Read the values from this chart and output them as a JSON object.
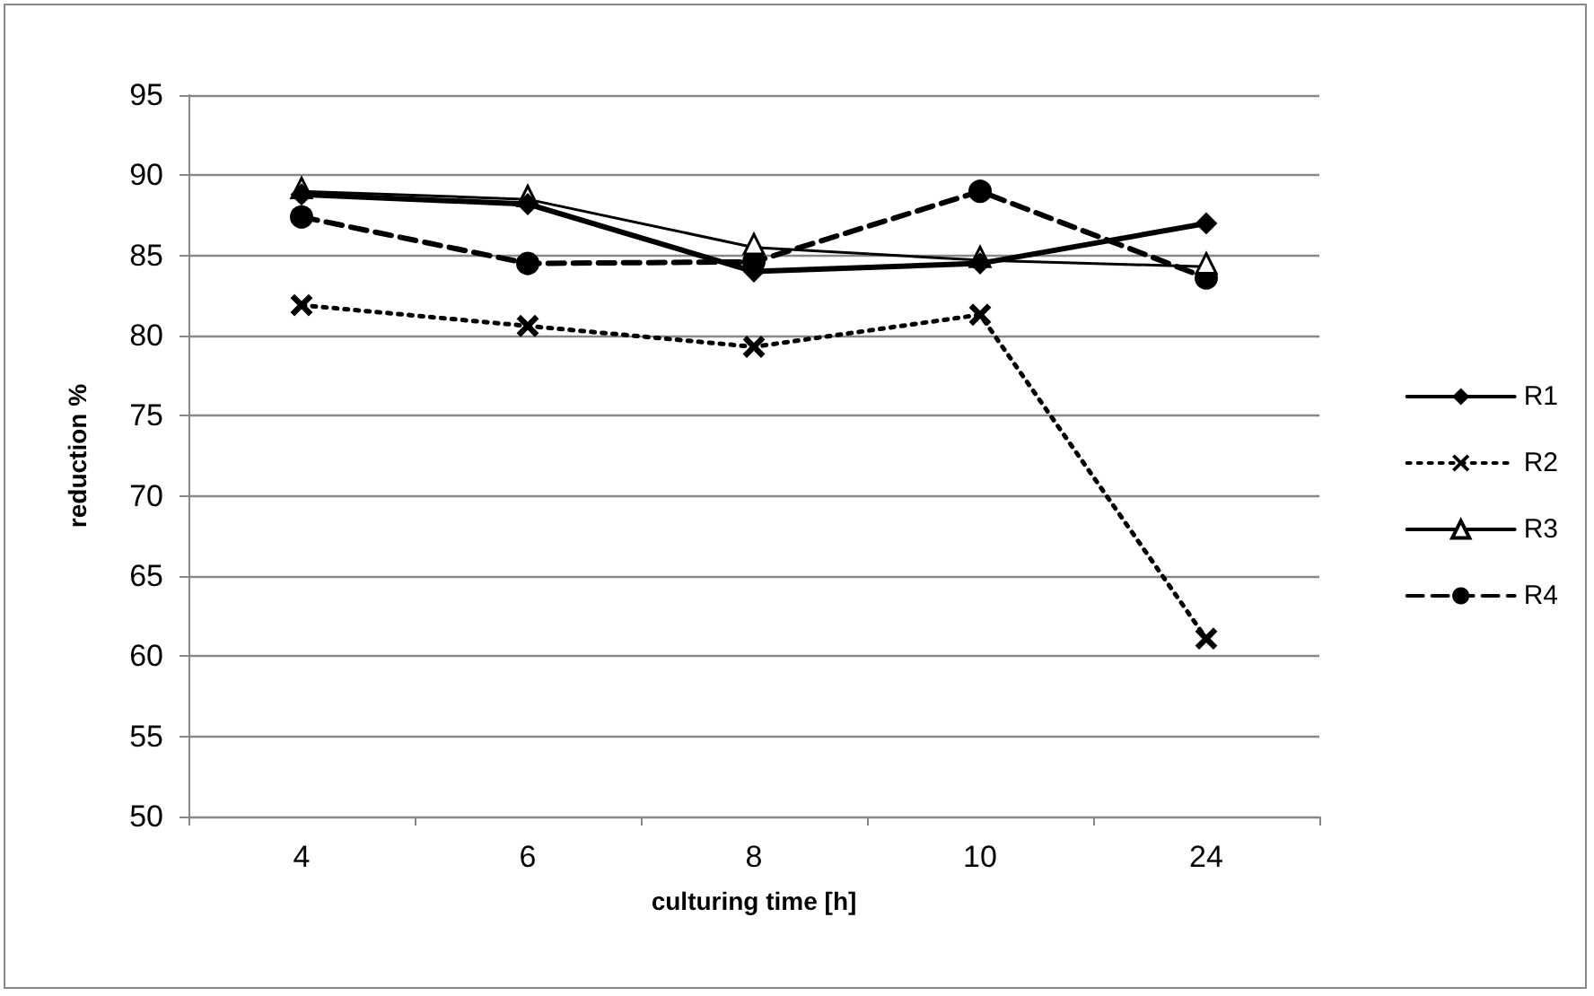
{
  "chart_data": {
    "type": "line",
    "xlabel": "culturing time [h]",
    "ylabel": "reduction %",
    "categories": [
      "4",
      "6",
      "8",
      "10",
      "24"
    ],
    "series": [
      {
        "name": "R1",
        "color": "#000000",
        "marker": "diamond",
        "line_style": "solid",
        "values": [
          88.8,
          88.2,
          84.0,
          84.5,
          87.0
        ]
      },
      {
        "name": "R2",
        "color": "#000000",
        "marker": "cross",
        "line_style": "dotted",
        "values": [
          81.9,
          80.6,
          79.3,
          81.3,
          61.1
        ]
      },
      {
        "name": "R3",
        "color": "#000000",
        "marker": "triangle",
        "line_style": "solid",
        "values": [
          89.0,
          88.5,
          85.5,
          84.7,
          84.3
        ]
      },
      {
        "name": "R4",
        "color": "#000000",
        "marker": "circle",
        "line_style": "dashed",
        "values": [
          87.4,
          84.5,
          84.6,
          89.0,
          83.6
        ]
      }
    ],
    "ylim": [
      50,
      95
    ],
    "yticks": [
      50,
      55,
      60,
      65,
      70,
      75,
      80,
      85,
      90,
      95
    ],
    "grid": "y",
    "legend": "right"
  }
}
